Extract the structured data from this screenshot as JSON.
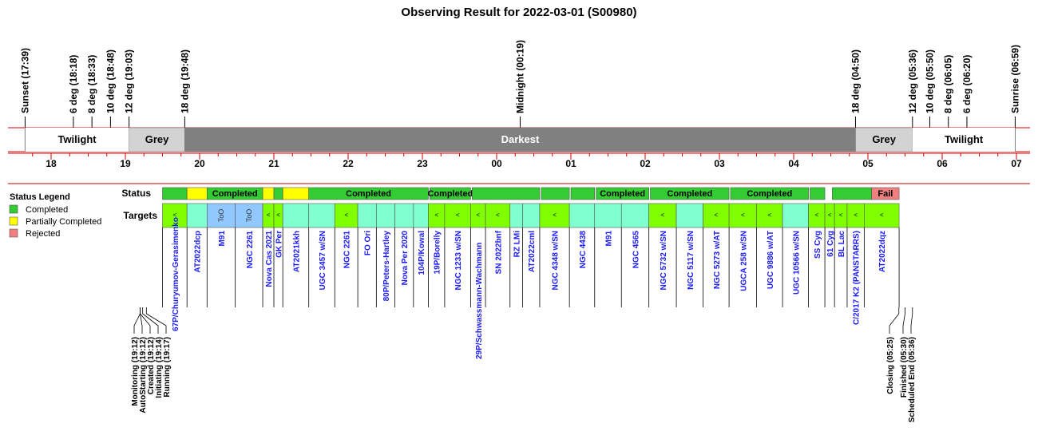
{
  "title": "Observing Result for 2022-03-01 (S00980)",
  "colors": {
    "completed": "#33cc33",
    "partial": "#ffff00",
    "rejected": "#f08080",
    "ruleLine": "#cc0000",
    "twilight": "#ffffff",
    "grey": "#d3d3d3",
    "darkest": "#808080",
    "targetCyan": "#80ffd0",
    "targetGreen": "#80ff00",
    "targetToO": "#90c8ff",
    "targetText": "#1a1aff"
  },
  "twilight_markers": [
    {
      "label": "Sunset (17:39)",
      "hour": 17.65
    },
    {
      "label": "6 deg (18:18)",
      "hour": 18.3
    },
    {
      "label": "8 deg (18:33)",
      "hour": 18.55
    },
    {
      "label": "10 deg (18:48)",
      "hour": 18.8
    },
    {
      "label": "12 deg (19:03)",
      "hour": 19.05
    },
    {
      "label": "18 deg (19:48)",
      "hour": 19.8
    },
    {
      "label": "Midnight (00:19)",
      "hour": 24.3167
    },
    {
      "label": "18 deg (04:50)",
      "hour": 28.833
    },
    {
      "label": "12 deg (05:36)",
      "hour": 29.6
    },
    {
      "label": "10 deg (05:50)",
      "hour": 29.833
    },
    {
      "label": "8 deg (06:05)",
      "hour": 30.083
    },
    {
      "label": "6 deg (06:20)",
      "hour": 30.333
    },
    {
      "label": "Sunrise (06:59)",
      "hour": 30.983
    }
  ],
  "bands": [
    {
      "label": "Twilight",
      "start": 17.65,
      "end": 19.05,
      "kind": "twilight"
    },
    {
      "label": "Grey",
      "start": 19.05,
      "end": 19.8,
      "kind": "grey"
    },
    {
      "label": "Darkest",
      "start": 19.8,
      "end": 28.833,
      "kind": "darkest"
    },
    {
      "label": "Grey",
      "start": 28.833,
      "end": 29.6,
      "kind": "grey"
    },
    {
      "label": "Twilight",
      "start": 29.6,
      "end": 30.983,
      "kind": "twilight"
    }
  ],
  "hour_labels": [
    "18",
    "19",
    "20",
    "21",
    "22",
    "23",
    "00",
    "01",
    "02",
    "03",
    "04",
    "05",
    "06",
    "07"
  ],
  "row_labels": {
    "status": "Status",
    "targets": "Targets"
  },
  "legend": {
    "title": "Status Legend",
    "items": [
      {
        "label": "Completed",
        "kind": "completed"
      },
      {
        "label": "Partially Completed",
        "kind": "partial"
      },
      {
        "label": "Rejected",
        "kind": "rejected"
      }
    ]
  },
  "status_segments": [
    {
      "start": 19.5,
      "end": 19.83,
      "kind": "completed",
      "label": ""
    },
    {
      "start": 19.83,
      "end": 20.1,
      "kind": "partial",
      "label": ""
    },
    {
      "start": 20.1,
      "end": 20.85,
      "kind": "completed",
      "label": "Completed"
    },
    {
      "start": 20.85,
      "end": 21.0,
      "kind": "partial",
      "label": ""
    },
    {
      "start": 21.0,
      "end": 21.12,
      "kind": "completed",
      "label": ""
    },
    {
      "start": 21.12,
      "end": 21.47,
      "kind": "partial",
      "label": ""
    },
    {
      "start": 21.47,
      "end": 23.08,
      "kind": "completed",
      "label": "Completed"
    },
    {
      "start": 23.1,
      "end": 23.65,
      "kind": "completed",
      "label": "Completed"
    },
    {
      "start": 23.67,
      "end": 24.58,
      "kind": "completed",
      "label": ""
    },
    {
      "start": 24.6,
      "end": 24.98,
      "kind": "completed",
      "label": ""
    },
    {
      "start": 25.0,
      "end": 25.32,
      "kind": "completed",
      "label": ""
    },
    {
      "start": 25.34,
      "end": 26.05,
      "kind": "completed",
      "label": "Completed"
    },
    {
      "start": 26.07,
      "end": 27.13,
      "kind": "completed",
      "label": "Completed"
    },
    {
      "start": 27.15,
      "end": 28.2,
      "kind": "completed",
      "label": "Completed"
    },
    {
      "start": 28.22,
      "end": 28.42,
      "kind": "completed",
      "label": ""
    },
    {
      "start": 28.52,
      "end": 29.05,
      "kind": "completed",
      "label": ""
    },
    {
      "start": 29.05,
      "end": 29.42,
      "kind": "rejected",
      "label": "Fail"
    }
  ],
  "targets": [
    {
      "name": "67P/Churyumov-Gerasimenko",
      "start": 19.5,
      "end": 19.83,
      "color": "green",
      "mark": "<"
    },
    {
      "name": "AT2022dcp",
      "start": 19.83,
      "end": 20.1,
      "color": "cyan",
      "mark": ""
    },
    {
      "name": "M91",
      "start": 20.1,
      "end": 20.48,
      "color": "too",
      "mark": "ToO"
    },
    {
      "name": "NGC 2261",
      "start": 20.48,
      "end": 20.85,
      "color": "too",
      "mark": "ToO"
    },
    {
      "name": "Nova Cas 2021",
      "start": 20.85,
      "end": 21.0,
      "color": "green",
      "mark": "<"
    },
    {
      "name": "GK Per",
      "start": 21.0,
      "end": 21.12,
      "color": "green",
      "mark": "<"
    },
    {
      "name": "AT2021kkh",
      "start": 21.12,
      "end": 21.47,
      "color": "cyan",
      "mark": ""
    },
    {
      "name": "UGC 3457 w/SN",
      "start": 21.47,
      "end": 21.82,
      "color": "cyan",
      "mark": ""
    },
    {
      "name": "NGC 2261",
      "start": 21.82,
      "end": 22.13,
      "color": "green",
      "mark": "<"
    },
    {
      "name": "FO Ori",
      "start": 22.13,
      "end": 22.38,
      "color": "cyan",
      "mark": ""
    },
    {
      "name": "80P/Peters-Hartley",
      "start": 22.38,
      "end": 22.63,
      "color": "cyan",
      "mark": ""
    },
    {
      "name": "Nova Per 2020",
      "start": 22.63,
      "end": 22.88,
      "color": "cyan",
      "mark": ""
    },
    {
      "name": "104P/Kowal",
      "start": 22.88,
      "end": 23.08,
      "color": "cyan",
      "mark": ""
    },
    {
      "name": "19P/Borelly",
      "start": 23.08,
      "end": 23.3,
      "color": "green",
      "mark": "<"
    },
    {
      "name": "NGC 1233 w/SN",
      "start": 23.3,
      "end": 23.65,
      "color": "green",
      "mark": "<"
    },
    {
      "name": "29P/Schwassmann-Wachmann",
      "start": 23.65,
      "end": 23.85,
      "color": "green",
      "mark": "<"
    },
    {
      "name": "SN 2022bnf",
      "start": 23.85,
      "end": 24.18,
      "color": "green",
      "mark": "<"
    },
    {
      "name": "RZ LMi",
      "start": 24.18,
      "end": 24.35,
      "color": "cyan",
      "mark": ""
    },
    {
      "name": "AT2022cml",
      "start": 24.35,
      "end": 24.58,
      "color": "cyan",
      "mark": ""
    },
    {
      "name": "NGC 4348 w/SN",
      "start": 24.58,
      "end": 24.98,
      "color": "green",
      "mark": "<"
    },
    {
      "name": "NGC 4438",
      "start": 24.98,
      "end": 25.32,
      "color": "cyan",
      "mark": ""
    },
    {
      "name": "M91",
      "start": 25.32,
      "end": 25.68,
      "color": "cyan",
      "mark": ""
    },
    {
      "name": "NGC 4565",
      "start": 25.68,
      "end": 26.05,
      "color": "cyan",
      "mark": ""
    },
    {
      "name": "NGC 5732 w/SN",
      "start": 26.05,
      "end": 26.42,
      "color": "green",
      "mark": "<"
    },
    {
      "name": "NGC 5117 w/SN",
      "start": 26.42,
      "end": 26.78,
      "color": "cyan",
      "mark": ""
    },
    {
      "name": "NGC 5273 w/AT",
      "start": 26.78,
      "end": 27.13,
      "color": "green",
      "mark": "<"
    },
    {
      "name": "UGCA 258 w/SN",
      "start": 27.13,
      "end": 27.5,
      "color": "green",
      "mark": "<"
    },
    {
      "name": "UGC 9886 w/AT",
      "start": 27.5,
      "end": 27.85,
      "color": "green",
      "mark": "<"
    },
    {
      "name": "UGC 10566 w/SN",
      "start": 27.85,
      "end": 28.2,
      "color": "cyan",
      "mark": ""
    },
    {
      "name": "SS Cyg",
      "start": 28.2,
      "end": 28.42,
      "color": "green",
      "mark": "<"
    },
    {
      "name": "61 Cyg",
      "start": 28.42,
      "end": 28.55,
      "color": "green",
      "mark": "<"
    },
    {
      "name": "BL Lac",
      "start": 28.55,
      "end": 28.72,
      "color": "green",
      "mark": "<"
    },
    {
      "name": "C/2017 K2 (PANSTARRS)",
      "start": 28.72,
      "end": 28.95,
      "color": "green",
      "mark": "<"
    },
    {
      "name": "AT2022dqz",
      "start": 28.95,
      "end": 29.42,
      "color": "green",
      "mark": "<"
    }
  ],
  "events": [
    {
      "label": "Monitoring (19:12)",
      "hour": 19.2
    },
    {
      "label": "AutoStarting (19:12)",
      "hour": 19.2
    },
    {
      "label": "Created (19:12)",
      "hour": 19.2
    },
    {
      "label": "Initiating (19:14)",
      "hour": 19.233
    },
    {
      "label": "Running (19:17)",
      "hour": 19.283
    },
    {
      "label": "Closing (05:25)",
      "hour": 29.417
    },
    {
      "label": "Finished (05:30)",
      "hour": 29.5
    },
    {
      "label": "Scheduled End (05:36)",
      "hour": 29.6
    }
  ]
}
